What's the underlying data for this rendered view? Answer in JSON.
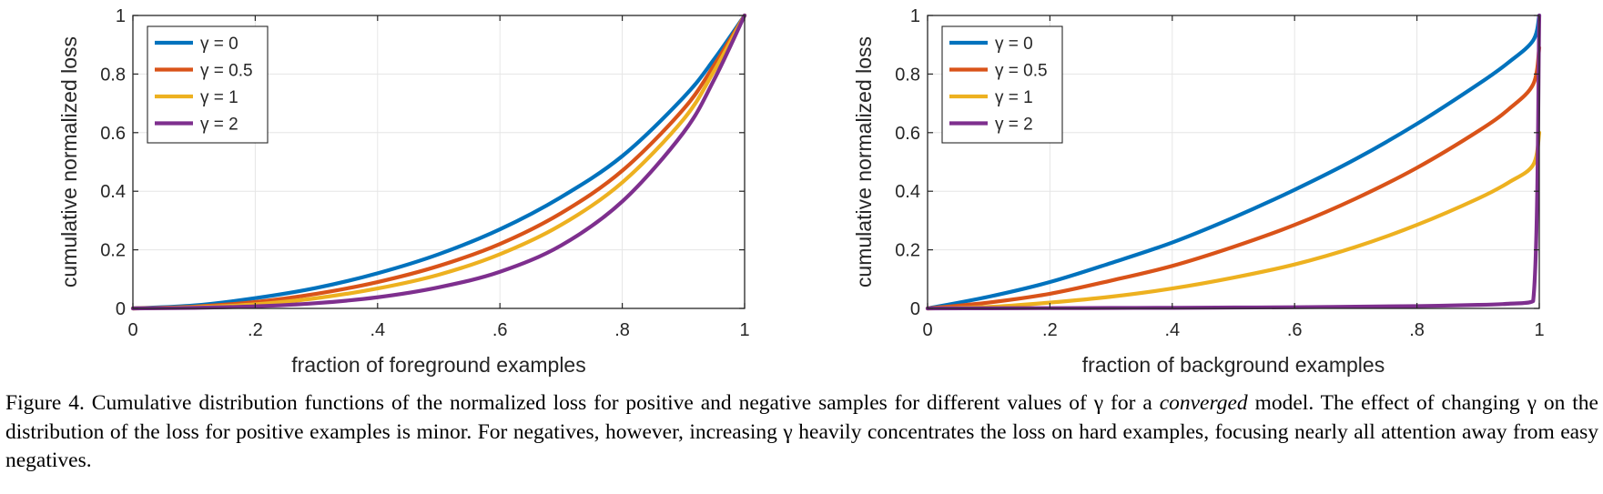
{
  "chart_data": [
    {
      "type": "line",
      "xlabel": "fraction of foreground examples",
      "ylabel": "cumulative normalized loss",
      "xlim": [
        0,
        1
      ],
      "ylim": [
        0,
        1
      ],
      "xticks": [
        {
          "value": 0,
          "label": "0"
        },
        {
          "value": 0.2,
          "label": ".2"
        },
        {
          "value": 0.4,
          "label": ".4"
        },
        {
          "value": 0.6,
          "label": ".6"
        },
        {
          "value": 0.8,
          "label": ".8"
        },
        {
          "value": 1,
          "label": "1"
        }
      ],
      "yticks": [
        {
          "value": 0,
          "label": "0"
        },
        {
          "value": 0.2,
          "label": "0.2"
        },
        {
          "value": 0.4,
          "label": "0.4"
        },
        {
          "value": 0.6,
          "label": "0.6"
        },
        {
          "value": 0.8,
          "label": "0.8"
        },
        {
          "value": 1,
          "label": "1"
        }
      ],
      "grid": true,
      "legend_position": "top-left",
      "x": [
        0,
        0.1,
        0.2,
        0.3,
        0.4,
        0.5,
        0.6,
        0.7,
        0.8,
        0.9,
        0.95,
        1.0
      ],
      "series": [
        {
          "name": "γ = 0",
          "color": "#0072bd",
          "values": [
            0,
            0.01,
            0.035,
            0.07,
            0.12,
            0.185,
            0.27,
            0.38,
            0.52,
            0.72,
            0.85,
            1.0
          ]
        },
        {
          "name": "γ = 0.5",
          "color": "#d95319",
          "values": [
            0,
            0.006,
            0.022,
            0.05,
            0.09,
            0.145,
            0.22,
            0.325,
            0.47,
            0.68,
            0.83,
            1.0
          ]
        },
        {
          "name": "γ = 1",
          "color": "#edb120",
          "values": [
            0,
            0.004,
            0.014,
            0.035,
            0.068,
            0.115,
            0.185,
            0.285,
            0.43,
            0.645,
            0.81,
            1.0
          ]
        },
        {
          "name": "γ = 2",
          "color": "#7e2f8e",
          "values": [
            0,
            0.002,
            0.007,
            0.018,
            0.038,
            0.072,
            0.125,
            0.215,
            0.365,
            0.6,
            0.78,
            1.0
          ]
        }
      ]
    },
    {
      "type": "line",
      "xlabel": "fraction of background examples",
      "ylabel": "cumulative normalized loss",
      "xlim": [
        0,
        1
      ],
      "ylim": [
        0,
        1
      ],
      "xticks": [
        {
          "value": 0,
          "label": "0"
        },
        {
          "value": 0.2,
          "label": ".2"
        },
        {
          "value": 0.4,
          "label": ".4"
        },
        {
          "value": 0.6,
          "label": ".6"
        },
        {
          "value": 0.8,
          "label": ".8"
        },
        {
          "value": 1,
          "label": "1"
        }
      ],
      "yticks": [
        {
          "value": 0,
          "label": "0"
        },
        {
          "value": 0.2,
          "label": "0.2"
        },
        {
          "value": 0.4,
          "label": "0.4"
        },
        {
          "value": 0.6,
          "label": "0.6"
        },
        {
          "value": 0.8,
          "label": "0.8"
        },
        {
          "value": 1,
          "label": "1"
        }
      ],
      "grid": true,
      "legend_position": "top-left",
      "x": [
        0,
        0.1,
        0.2,
        0.3,
        0.4,
        0.5,
        0.6,
        0.7,
        0.8,
        0.9,
        0.95,
        0.99,
        1.0
      ],
      "series": [
        {
          "name": "γ = 0",
          "color": "#0072bd",
          "values": [
            0,
            0.04,
            0.09,
            0.155,
            0.225,
            0.31,
            0.405,
            0.51,
            0.63,
            0.765,
            0.84,
            0.915,
            1.0
          ]
        },
        {
          "name": "γ = 0.5",
          "color": "#d95319",
          "values": [
            0,
            0.02,
            0.05,
            0.095,
            0.145,
            0.21,
            0.285,
            0.375,
            0.48,
            0.605,
            0.68,
            0.765,
            0.89
          ]
        },
        {
          "name": "γ = 1",
          "color": "#edb120",
          "values": [
            0,
            0.005,
            0.02,
            0.04,
            0.068,
            0.105,
            0.15,
            0.21,
            0.285,
            0.375,
            0.43,
            0.49,
            0.6
          ]
        },
        {
          "name": "γ = 2",
          "color": "#7e2f8e",
          "values": [
            0,
            0.0005,
            0.001,
            0.0015,
            0.002,
            0.003,
            0.004,
            0.006,
            0.008,
            0.012,
            0.016,
            0.025,
            1.0
          ]
        }
      ]
    }
  ],
  "caption": {
    "prefix": "Figure 4. Cumulative distribution functions of the normalized loss for positive and negative samples for different values of γ for a ",
    "emphasis": "converged",
    "suffix": " model. The effect of changing γ on the distribution of the loss for positive examples is minor. For negatives, however, increasing γ heavily concentrates the loss on hard examples, focusing nearly all attention away from easy negatives."
  }
}
